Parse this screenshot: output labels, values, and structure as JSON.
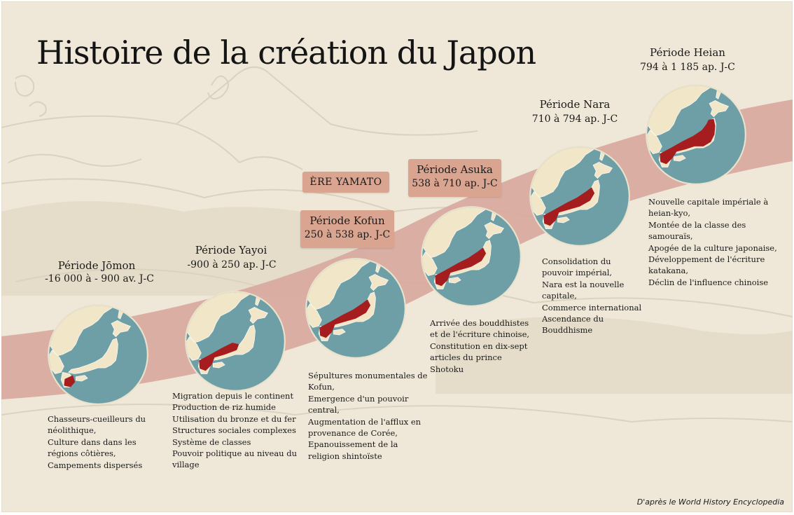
{
  "title": "Histoire de la création du Japon",
  "era_label": "ÈRE YAMATO",
  "credit": "D'après le World History Encyclopedia",
  "colors": {
    "background": "#efe8d8",
    "band": "#d9a8a0",
    "box": "#d9a590",
    "sea": "#6f9fa6",
    "land": "#f1e7c8",
    "highlight": "#a51d1f"
  },
  "periods": [
    {
      "name": "Période Jōmon",
      "dates": "-16 000 à - 900 av. J-C",
      "highlight_region": "southern Kyushu",
      "description": [
        "Chasseurs-cueilleurs du",
        "néolithique,",
        "Culture dans dans les",
        "régions côtières,",
        "Campements dispersés"
      ]
    },
    {
      "name": "Période Yayoi",
      "dates": "-900 à 250 ap. J-C",
      "highlight_region": "Kyushu and western Honshu",
      "description": [
        "Migration depuis le continent",
        "Production de riz humide",
        "Utilisation du bronze et du fer",
        "Structures sociales complexes",
        "Système de classes",
        "Pouvoir politique au niveau du",
        "village"
      ]
    },
    {
      "name": "Période Kofun",
      "dates": "250 à 538 ap. J-C",
      "highlight_region": "Kyushu, Shikoku and central Honshu",
      "description": [
        "Sépultures monumentales de",
        "Kofun,",
        "Emergence d'un pouvoir",
        "central,",
        "Augmentation de l'afflux en",
        "provenance de Corée,",
        "Epanouissement de la",
        "religion shintoïste"
      ]
    },
    {
      "name": "Période Asuka",
      "dates": "538 à 710 ap. J-C",
      "highlight_region": "Kyushu, Shikoku and central Honshu",
      "description": [
        "Arrivée des bouddhistes",
        "et de l'écriture chinoise,",
        "Constitution en dix-sept",
        "articles du prince",
        "Shotoku"
      ]
    },
    {
      "name": "Période Nara",
      "dates": "710 à 794 ap. J-C",
      "highlight_region": "Kyushu, Shikoku and central Honshu",
      "description": [
        "Consolidation du",
        "pouvoir impérial,",
        "Nara est la nouvelle",
        "capitale,",
        "Commerce international",
        "Ascendance du",
        "Bouddhisme"
      ]
    },
    {
      "name": "Période Heian",
      "dates": "794 à 1 185 ap. J-C",
      "highlight_region": "Kyushu, Shikoku and most of Honshu",
      "description": [
        "Nouvelle capitale impériale à",
        "heian-kyo,",
        "Montée de la classe des",
        "samouraïs,",
        "Apogée de la culture japonaise,",
        "Développement de l'écriture",
        "katakana,",
        "Déclin de l'influence chinoise"
      ]
    }
  ]
}
